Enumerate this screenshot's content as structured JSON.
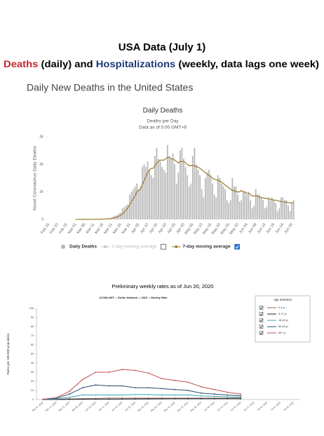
{
  "header": {
    "title": "USA Data (July 1)",
    "subtitle": [
      {
        "text": "Deaths",
        "color": "#c0282d"
      },
      {
        "text": " (daily) and "
      },
      {
        "text": "Hospitalizations",
        "color": "#1f3a7a"
      },
      {
        "text": " (weekly, data lags one week)"
      }
    ]
  },
  "chart_data": [
    {
      "type": "bar",
      "heading": "Daily New Deaths in the United States",
      "title": "Daily Deaths",
      "subtitle": [
        "Deaths per Day",
        "Data as of 0:00 GMT+8"
      ],
      "ylabel": "Novel Coronavirus Daily Deaths",
      "categories": [
        "Feb 15",
        null,
        null,
        null,
        null,
        "Feb 20",
        null,
        null,
        null,
        null,
        "Feb 25",
        null,
        null,
        null,
        null,
        "Mar 01",
        null,
        null,
        null,
        null,
        "Mar 06",
        null,
        null,
        null,
        null,
        "Mar 11",
        null,
        null,
        null,
        null,
        "Mar 16",
        null,
        null,
        null,
        null,
        "Mar 21",
        null,
        null,
        null,
        null,
        "Mar 26",
        null,
        null,
        null,
        null,
        "Mar 31",
        null,
        null,
        null,
        null,
        "Apr 05",
        null,
        null,
        null,
        null,
        "Apr 10",
        null,
        null,
        null,
        null,
        "Apr 15",
        null,
        null,
        null,
        null,
        "Apr 20",
        null,
        null,
        null,
        null,
        "Apr 25",
        null,
        null,
        null,
        null,
        "Apr 30",
        null,
        null,
        null,
        null,
        "May 05",
        null,
        null,
        null,
        null,
        "May 10",
        null,
        null,
        null,
        null,
        "May 15",
        null,
        null,
        null,
        null,
        "May 20",
        null,
        null,
        null,
        null,
        "May 25",
        null,
        null,
        null,
        null,
        "May 30",
        null,
        null,
        null,
        null,
        "Jun 04",
        null,
        null,
        null,
        null,
        "Jun 09",
        null,
        null,
        null,
        null,
        "Jun 14",
        null,
        null,
        null,
        null,
        "Jun 19",
        null,
        null,
        null,
        null,
        "Jun 24",
        null,
        null,
        null,
        null,
        "Jun 29",
        null
      ],
      "series": [
        {
          "name": "Daily Deaths",
          "type": "bar",
          "color": "#b4b4b4",
          "values": [
            0,
            0,
            0,
            0,
            0,
            0,
            0,
            0,
            0,
            0,
            0,
            0,
            0,
            0,
            1,
            1,
            0,
            1,
            3,
            2,
            1,
            2,
            4,
            4,
            4,
            8,
            7,
            10,
            9,
            10,
            18,
            23,
            39,
            40,
            50,
            60,
            110,
            140,
            160,
            230,
            240,
            400,
            450,
            500,
            550,
            900,
            1000,
            1100,
            1200,
            1300,
            1100,
            1200,
            1900,
            2000,
            1900,
            2100,
            1800,
            1600,
            1500,
            2300,
            2600,
            2200,
            2100,
            1900,
            1800,
            1700,
            2700,
            2300,
            2200,
            2400,
            2000,
            1300,
            1700,
            2500,
            2600,
            2200,
            1900,
            1600,
            1200,
            1300,
            2300,
            2600,
            2000,
            1800,
            1600,
            1100,
            800,
            1500,
            1700,
            1800,
            1600,
            1300,
            900,
            800,
            1600,
            1500,
            1300,
            1200,
            1100,
            700,
            600,
            700,
            1500,
            1200,
            1200,
            900,
            650,
            700,
            1000,
            1000,
            900,
            1000,
            700,
            400,
            500,
            1100,
            900,
            900,
            800,
            700,
            400,
            450,
            800,
            700,
            800,
            700,
            600,
            300,
            400,
            800,
            800,
            700,
            700,
            500,
            300,
            600,
            700
          ]
        },
        {
          "name": "3-day moving average",
          "type": "line",
          "color": "#c8c8c8",
          "visible": false,
          "checkbox": false
        },
        {
          "name": "7-day moving average",
          "type": "line",
          "color": "#a0813a",
          "checkbox": true,
          "values": [
            null,
            null,
            null,
            null,
            null,
            null,
            null,
            null,
            null,
            null,
            null,
            null,
            null,
            null,
            null,
            0,
            0,
            0,
            1,
            1,
            1,
            2,
            2,
            3,
            3,
            4,
            5,
            6,
            7,
            8,
            10,
            12,
            16,
            21,
            26,
            34,
            48,
            65,
            85,
            115,
            150,
            200,
            260,
            330,
            420,
            530,
            650,
            750,
            860,
            1000,
            1050,
            1100,
            1250,
            1400,
            1550,
            1700,
            1800,
            1850,
            1850,
            1950,
            2050,
            2100,
            2150,
            2150,
            2150,
            2200,
            2250,
            2250,
            2200,
            2200,
            2150,
            2100,
            2050,
            2100,
            2100,
            2100,
            2050,
            2000,
            1950,
            1950,
            1950,
            1950,
            1900,
            1900,
            1850,
            1800,
            1750,
            1700,
            1650,
            1600,
            1550,
            1500,
            1450,
            1450,
            1400,
            1400,
            1350,
            1300,
            1250,
            1200,
            1150,
            1100,
            1050,
            1050,
            1000,
            1000,
            1000,
            1050,
            1000,
            1000,
            950,
            950,
            900,
            850,
            850,
            850,
            850,
            800,
            800,
            780,
            770,
            760,
            750,
            730,
            720,
            700,
            700,
            680,
            660,
            650,
            640,
            630,
            620,
            610,
            600,
            600,
            600
          ]
        }
      ],
      "ylim": [
        0,
        3000
      ],
      "yticks": [
        0,
        {
          "value": 1000,
          "label": "1k"
        },
        {
          "value": 2000,
          "label": "2k"
        },
        {
          "value": 3000,
          "label": "3k"
        }
      ],
      "grid": false
    },
    {
      "type": "line",
      "title": "Preliminary weekly rates as of Jun 20, 2020",
      "subtitle": [
        "COVID-NET :: Entire Network :: 2020 :: Weekly Rate"
      ],
      "ylabel": "Rates per 100,000 population",
      "legend_title": "Age Selection",
      "categories": [
        "Mar 07, 2020",
        "Mar 14, 2020",
        "Mar 21, 2020",
        "Mar 28, 2020",
        "Apr 04, 2020",
        "Apr 11, 2020",
        "Apr 18, 2020",
        "Apr 25, 2020",
        "May 02, 2020",
        "May 09, 2020",
        "May 16, 2020",
        "May 23, 2020",
        "May 30, 2020",
        "Jun 06, 2020",
        "Jun 13, 2020",
        "Jun 20, 2020",
        "Jun 27, 2020",
        "Jul 04, 2020",
        "Jul 11, 2020",
        "Jul 18, 2020"
      ],
      "series": [
        {
          "name": "0-4 yr",
          "color": "#a0663a",
          "checkbox": true,
          "values": [
            0,
            0.3,
            0.8,
            1,
            1.2,
            1.5,
            1.5,
            1.5,
            1.5,
            1.5,
            1.5,
            1.5,
            1.5,
            1.5,
            1.5,
            1.5,
            null,
            null,
            null,
            null
          ]
        },
        {
          "name": "5-17 yr",
          "color": "#1c2a48",
          "checkbox": true,
          "values": [
            0,
            0.1,
            0.2,
            0.4,
            0.5,
            0.5,
            0.6,
            0.7,
            0.8,
            0.9,
            1,
            1,
            1,
            1,
            1,
            1,
            null,
            null,
            null,
            null
          ]
        },
        {
          "name": "18-49 yr",
          "color": "#3aa6b9",
          "checkbox": true,
          "values": [
            0.2,
            0.8,
            2.5,
            5,
            5,
            5,
            5,
            5.5,
            5.5,
            5,
            5,
            5,
            4,
            3.5,
            3,
            2.5,
            null,
            null,
            null,
            null
          ]
        },
        {
          "name": "50-64 yr",
          "color": "#2c4a73",
          "checkbox": true,
          "values": [
            0.3,
            1.5,
            6,
            13,
            16,
            15,
            15,
            13,
            13,
            12,
            11,
            10,
            7,
            6,
            5,
            4,
            null,
            null,
            null,
            null
          ]
        },
        {
          "name": "65+ yr",
          "color": "#c0504d",
          "checkbox": true,
          "values": [
            0.4,
            2,
            9,
            22,
            30,
            30,
            33,
            32,
            29,
            23,
            21,
            19,
            14,
            11,
            8,
            6,
            null,
            null,
            null,
            null
          ]
        }
      ],
      "ylim": [
        0,
        100
      ],
      "yticks": [
        0,
        10,
        20,
        30,
        40,
        50,
        60,
        70,
        80,
        90,
        100
      ],
      "grid": false
    }
  ]
}
